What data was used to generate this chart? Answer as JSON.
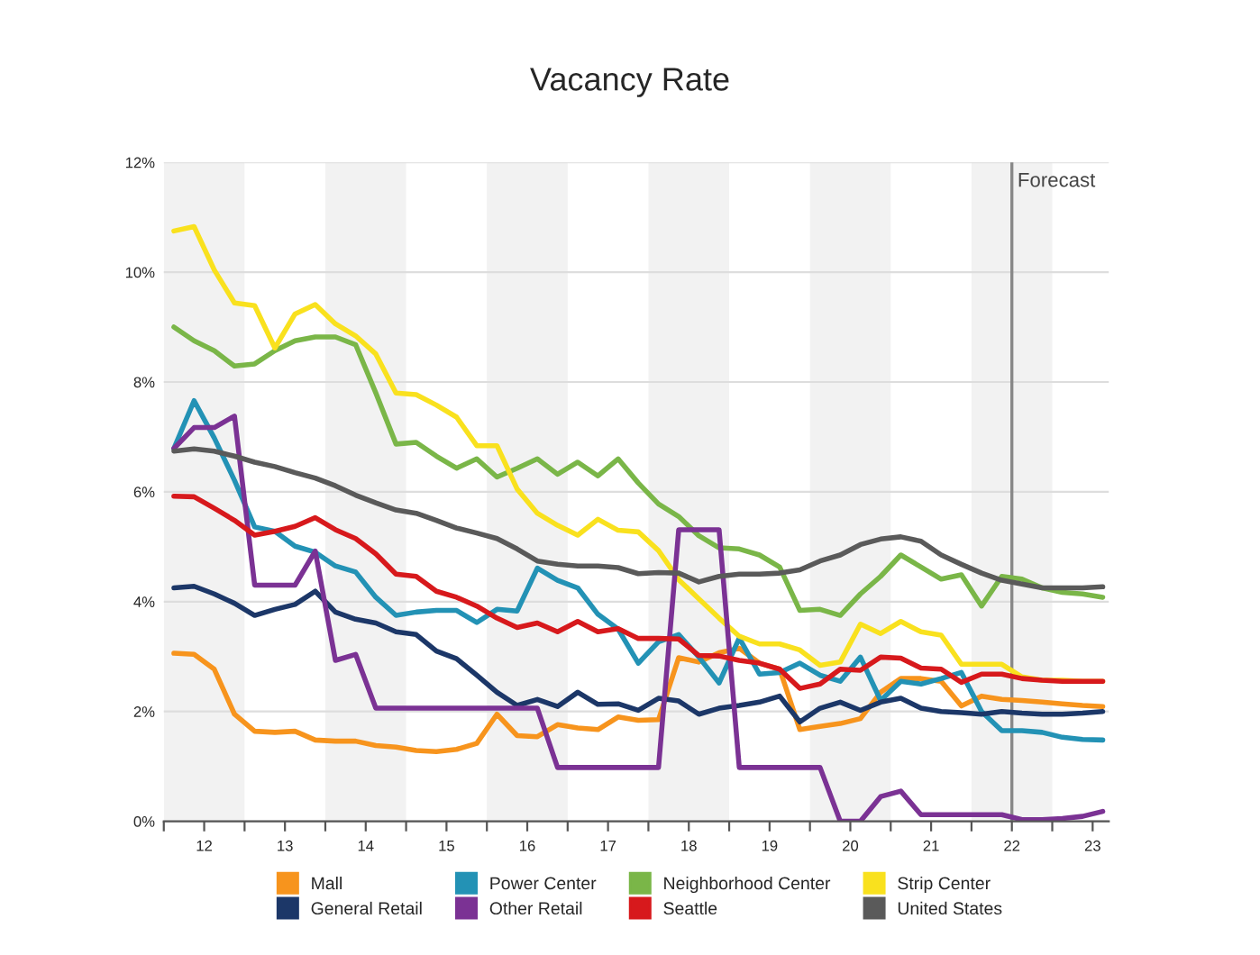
{
  "chart_data": {
    "type": "line",
    "title": "Vacancy Rate",
    "x": [
      11.625,
      11.875,
      12.125,
      12.375,
      12.625,
      12.875,
      13.125,
      13.375,
      13.625,
      13.875,
      14.125,
      14.375,
      14.625,
      14.875,
      15.125,
      15.375,
      15.625,
      15.875,
      16.125,
      16.375,
      16.625,
      16.875,
      17.125,
      17.375,
      17.625,
      17.875,
      18.125,
      18.375,
      18.625,
      18.875,
      19.125,
      19.375,
      19.625,
      19.875,
      20.125,
      20.375,
      20.625,
      20.875,
      21.125,
      21.375,
      21.625,
      21.875,
      22.125,
      22.375,
      22.625,
      22.875,
      23.125
    ],
    "series": [
      {
        "name": "Mall",
        "color": "#f7941d",
        "values": [
          3.06,
          3.04,
          2.77,
          1.95,
          1.64,
          1.62,
          1.64,
          1.48,
          1.46,
          1.46,
          1.38,
          1.35,
          1.29,
          1.27,
          1.31,
          1.42,
          1.95,
          1.56,
          1.54,
          1.76,
          1.7,
          1.67,
          1.9,
          1.84,
          1.85,
          2.98,
          2.9,
          3.07,
          3.15,
          2.88,
          2.77,
          1.67,
          1.73,
          1.78,
          1.87,
          2.35,
          2.6,
          2.6,
          2.55,
          2.1,
          2.28,
          2.22,
          2.2,
          2.17,
          2.14,
          2.11,
          2.09
        ]
      },
      {
        "name": "Power Center",
        "color": "#2392b5",
        "values": [
          6.79,
          7.66,
          6.98,
          6.21,
          5.36,
          5.28,
          5.01,
          4.9,
          4.65,
          4.54,
          4.08,
          3.75,
          3.81,
          3.84,
          3.84,
          3.62,
          3.86,
          3.83,
          4.61,
          4.39,
          4.25,
          3.77,
          3.5,
          2.88,
          3.27,
          3.4,
          2.99,
          2.52,
          3.34,
          2.68,
          2.71,
          2.88,
          2.66,
          2.55,
          2.99,
          2.2,
          2.55,
          2.5,
          2.6,
          2.71,
          2.0,
          1.65,
          1.65,
          1.62,
          1.53,
          1.49,
          1.48
        ]
      },
      {
        "name": "Neighborhood Center",
        "color": "#7ab648",
        "values": [
          9.0,
          8.75,
          8.57,
          8.29,
          8.33,
          8.57,
          8.75,
          8.82,
          8.82,
          8.68,
          7.8,
          6.87,
          6.9,
          6.65,
          6.43,
          6.6,
          6.27,
          6.43,
          6.6,
          6.32,
          6.54,
          6.29,
          6.6,
          6.16,
          5.78,
          5.55,
          5.2,
          4.98,
          4.96,
          4.85,
          4.63,
          3.84,
          3.86,
          3.75,
          4.14,
          4.46,
          4.85,
          4.63,
          4.41,
          4.49,
          3.92,
          4.46,
          4.41,
          4.25,
          4.17,
          4.14,
          4.08
        ]
      },
      {
        "name": "Strip Center",
        "color": "#f9e11e",
        "values": [
          10.75,
          10.83,
          10.04,
          9.44,
          9.39,
          8.62,
          9.24,
          9.41,
          9.06,
          8.84,
          8.51,
          7.8,
          7.77,
          7.58,
          7.36,
          6.84,
          6.84,
          6.05,
          5.61,
          5.39,
          5.21,
          5.5,
          5.3,
          5.27,
          4.93,
          4.4,
          4.05,
          3.7,
          3.37,
          3.23,
          3.23,
          3.12,
          2.84,
          2.9,
          3.59,
          3.42,
          3.64,
          3.45,
          3.39,
          2.86,
          2.86,
          2.86,
          2.63,
          2.57,
          2.57,
          2.55,
          2.55
        ]
      },
      {
        "name": "General Retail",
        "color": "#1c3768",
        "values": [
          4.25,
          4.28,
          4.14,
          3.97,
          3.75,
          3.86,
          3.95,
          4.19,
          3.81,
          3.68,
          3.61,
          3.45,
          3.4,
          3.1,
          2.96,
          2.66,
          2.35,
          2.11,
          2.22,
          2.09,
          2.35,
          2.13,
          2.14,
          2.02,
          2.24,
          2.19,
          1.95,
          2.06,
          2.11,
          2.17,
          2.28,
          1.81,
          2.06,
          2.17,
          2.02,
          2.17,
          2.24,
          2.06,
          2.0,
          1.98,
          1.95,
          2.0,
          1.97,
          1.95,
          1.95,
          1.97,
          2.0
        ]
      },
      {
        "name": "Other Retail",
        "color": "#7b3294",
        "values": [
          6.79,
          7.17,
          7.17,
          7.38,
          4.3,
          4.3,
          4.3,
          4.92,
          2.93,
          3.04,
          2.06,
          2.06,
          2.06,
          2.06,
          2.06,
          2.06,
          2.06,
          2.06,
          2.06,
          0.98,
          0.98,
          0.98,
          0.98,
          0.98,
          0.98,
          5.31,
          5.31,
          5.31,
          0.98,
          0.98,
          0.98,
          0.98,
          0.98,
          0.0,
          0.0,
          0.45,
          0.55,
          0.12,
          0.12,
          0.12,
          0.12,
          0.12,
          0.03,
          0.03,
          0.05,
          0.09,
          0.18
        ]
      },
      {
        "name": "Seattle",
        "color": "#d7191c",
        "values": [
          5.92,
          5.91,
          5.7,
          5.48,
          5.21,
          5.28,
          5.37,
          5.53,
          5.31,
          5.15,
          4.87,
          4.5,
          4.46,
          4.19,
          4.08,
          3.92,
          3.7,
          3.53,
          3.61,
          3.45,
          3.64,
          3.45,
          3.51,
          3.33,
          3.33,
          3.32,
          3.02,
          3.01,
          2.93,
          2.88,
          2.77,
          2.42,
          2.5,
          2.77,
          2.75,
          2.99,
          2.97,
          2.79,
          2.77,
          2.53,
          2.68,
          2.68,
          2.6,
          2.57,
          2.55,
          2.55,
          2.55
        ]
      },
      {
        "name": "United States",
        "color": "#5a5a5a",
        "values": [
          6.74,
          6.78,
          6.74,
          6.65,
          6.54,
          6.46,
          6.35,
          6.25,
          6.11,
          5.94,
          5.8,
          5.67,
          5.61,
          5.48,
          5.34,
          5.25,
          5.15,
          4.96,
          4.74,
          4.68,
          4.65,
          4.65,
          4.62,
          4.51,
          4.53,
          4.52,
          4.36,
          4.46,
          4.5,
          4.5,
          4.52,
          4.58,
          4.74,
          4.85,
          5.04,
          5.14,
          5.18,
          5.1,
          4.85,
          4.68,
          4.52,
          4.39,
          4.32,
          4.25,
          4.25,
          4.25,
          4.27
        ]
      }
    ],
    "xlim": [
      11.5,
      23.2
    ],
    "xticks": [
      {
        "value": 11.5,
        "label": null
      },
      12,
      {
        "value": 12.5,
        "label": null
      },
      13,
      {
        "value": 13.5,
        "label": null
      },
      14,
      {
        "value": 14.5,
        "label": null
      },
      15,
      {
        "value": 15.5,
        "label": null
      },
      16,
      {
        "value": 16.5,
        "label": null
      },
      17,
      {
        "value": 17.5,
        "label": null
      },
      18,
      {
        "value": 18.5,
        "label": null
      },
      19,
      {
        "value": 19.5,
        "label": null
      },
      20,
      {
        "value": 20.5,
        "label": null
      },
      21,
      {
        "value": 21.5,
        "label": null
      },
      22,
      {
        "value": 22.5,
        "label": null
      },
      23
    ],
    "ylim": [
      0,
      12
    ],
    "yticks": [
      {
        "value": 0,
        "label": "0%"
      },
      {
        "value": 2,
        "label": "2%"
      },
      {
        "value": 4,
        "label": "4%"
      },
      {
        "value": 6,
        "label": "6%"
      },
      {
        "value": 8,
        "label": "8%"
      },
      {
        "value": 10,
        "label": "10%"
      },
      {
        "value": 12,
        "label": "12%"
      }
    ],
    "grid": "y",
    "legend": "bottom",
    "line_style": "solid",
    "ref_lines": [
      {
        "axis": "x",
        "value": 22,
        "label": "Forecast",
        "color": "#888888"
      }
    ],
    "bands": [
      {
        "axis": "x",
        "from": 11.5,
        "to": 12.5,
        "color": "#f2f2f2"
      },
      {
        "axis": "x",
        "from": 13.5,
        "to": 14.5,
        "color": "#f2f2f2"
      },
      {
        "axis": "x",
        "from": 15.5,
        "to": 16.5,
        "color": "#f2f2f2"
      },
      {
        "axis": "x",
        "from": 17.5,
        "to": 18.5,
        "color": "#f2f2f2"
      },
      {
        "axis": "x",
        "from": 19.5,
        "to": 20.5,
        "color": "#f2f2f2"
      },
      {
        "axis": "x",
        "from": 21.5,
        "to": 22.5,
        "color": "#f2f2f2"
      }
    ]
  }
}
